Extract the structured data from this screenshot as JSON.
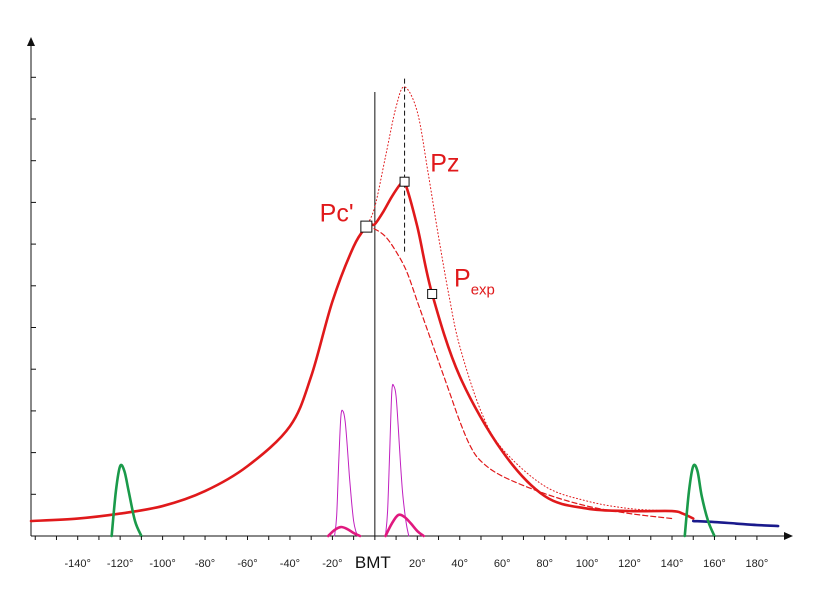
{
  "chart_data": {
    "type": "line",
    "title": "",
    "xlabel": "",
    "ylabel": "",
    "xlim": [
      -162,
      197
    ],
    "ylim": [
      0,
      1.0
    ],
    "grid": false,
    "y_ticks_labeled": false,
    "x_ticks": [
      -140,
      -120,
      -100,
      -80,
      -60,
      -40,
      -20,
      20,
      40,
      60,
      80,
      100,
      120,
      140,
      160,
      180
    ],
    "x_tick_labels": [
      "-140°",
      "-120°",
      "-100°",
      "-80°",
      "-60°",
      "-40°",
      "-20°",
      "20°",
      "40°",
      "60°",
      "80°",
      "100°",
      "120°",
      "140°",
      "160°",
      "180°"
    ],
    "zero_label": "BMT",
    "annotations": [
      {
        "text": "Pc'",
        "x": -18,
        "y": 0.63
      },
      {
        "text": "Pz",
        "x": 33,
        "y": 0.73
      },
      {
        "text": "P",
        "sub": "exp",
        "x": 42,
        "y": 0.5
      }
    ],
    "markers": [
      {
        "name": "Pc'",
        "x": -4,
        "y": 0.62
      },
      {
        "name": "Pz",
        "x": 14,
        "y": 0.71
      },
      {
        "name": "Pexp",
        "x": 27,
        "y": 0.485
      }
    ],
    "vertical_lines": [
      {
        "x": 0,
        "style": "solid"
      },
      {
        "x": 14,
        "style": "dashed",
        "y_from": 0.57,
        "y_to": 0.92
      }
    ],
    "series": [
      {
        "style": "solid",
        "color": "#e0191b",
        "x": [
          -162,
          -140,
          -120,
          -100,
          -80,
          -60,
          -40,
          -30,
          -20,
          -10,
          -4,
          -2,
          0,
          4,
          8,
          12,
          14,
          20,
          27,
          40,
          60,
          80,
          100,
          120,
          140,
          145,
          150
        ],
        "y": [
          0.03,
          0.035,
          0.045,
          0.06,
          0.09,
          0.14,
          0.22,
          0.32,
          0.47,
          0.58,
          0.62,
          0.625,
          0.625,
          0.65,
          0.68,
          0.705,
          0.71,
          0.62,
          0.485,
          0.32,
          0.17,
          0.08,
          0.055,
          0.05,
          0.05,
          0.045,
          0.035
        ]
      },
      {
        "style": "dashed",
        "color": "#e0191b",
        "x": [
          -4,
          0,
          5,
          10,
          15,
          20,
          25,
          30,
          35,
          40,
          45,
          50,
          60,
          80,
          100,
          120,
          140
        ],
        "y": [
          0.62,
          0.615,
          0.6,
          0.57,
          0.53,
          0.47,
          0.41,
          0.35,
          0.29,
          0.23,
          0.18,
          0.15,
          0.12,
          0.085,
          0.06,
          0.045,
          0.035
        ]
      },
      {
        "style": "dotted",
        "color": "#e0191b",
        "x": [
          -4,
          0,
          5,
          10,
          14,
          20,
          25,
          30,
          35,
          40,
          50,
          60,
          80,
          100,
          120,
          140
        ],
        "y": [
          0.62,
          0.66,
          0.76,
          0.86,
          0.9,
          0.85,
          0.73,
          0.6,
          0.48,
          0.38,
          0.25,
          0.175,
          0.1,
          0.07,
          0.055,
          0.05
        ]
      },
      {
        "style": "solid",
        "color": "#1a1a8c",
        "x": [
          150,
          160,
          170,
          180,
          190
        ],
        "y": [
          0.03,
          0.028,
          0.025,
          0.022,
          0.02
        ]
      },
      {
        "style": "solid",
        "color": "#1a9a4a",
        "x": [
          -124,
          -122,
          -120,
          -118,
          -116,
          -113,
          -110
        ],
        "y": [
          0.0,
          0.09,
          0.14,
          0.13,
          0.09,
          0.03,
          0.0
        ]
      },
      {
        "style": "solid",
        "color": "#1a9a4a",
        "x": [
          146,
          148,
          150,
          152,
          154,
          157,
          160
        ],
        "y": [
          0.0,
          0.09,
          0.14,
          0.13,
          0.08,
          0.03,
          0.0
        ]
      },
      {
        "style": "thin",
        "color": "#c020c0",
        "x": [
          -19,
          -18,
          -17,
          -16,
          -15,
          -14,
          -13,
          -12,
          -11,
          -10,
          -9,
          -8
        ],
        "y": [
          0.0,
          0.04,
          0.15,
          0.24,
          0.25,
          0.23,
          0.18,
          0.12,
          0.07,
          0.03,
          0.01,
          0.0
        ]
      },
      {
        "style": "thin",
        "color": "#c020c0",
        "x": [
          5,
          6,
          7,
          8,
          9,
          10,
          11,
          12,
          13,
          14,
          15,
          16
        ],
        "y": [
          0.0,
          0.05,
          0.17,
          0.29,
          0.3,
          0.28,
          0.22,
          0.15,
          0.09,
          0.05,
          0.02,
          0.0
        ]
      },
      {
        "style": "solid",
        "color": "#e0197f",
        "x": [
          -22,
          -19,
          -16,
          -13,
          -10,
          -7
        ],
        "y": [
          0.0,
          0.012,
          0.018,
          0.014,
          0.006,
          0.0
        ]
      },
      {
        "style": "solid",
        "color": "#e0197f",
        "x": [
          5,
          8,
          11,
          14,
          17,
          20,
          23
        ],
        "y": [
          0.0,
          0.025,
          0.042,
          0.038,
          0.025,
          0.01,
          0.0
        ]
      }
    ]
  }
}
